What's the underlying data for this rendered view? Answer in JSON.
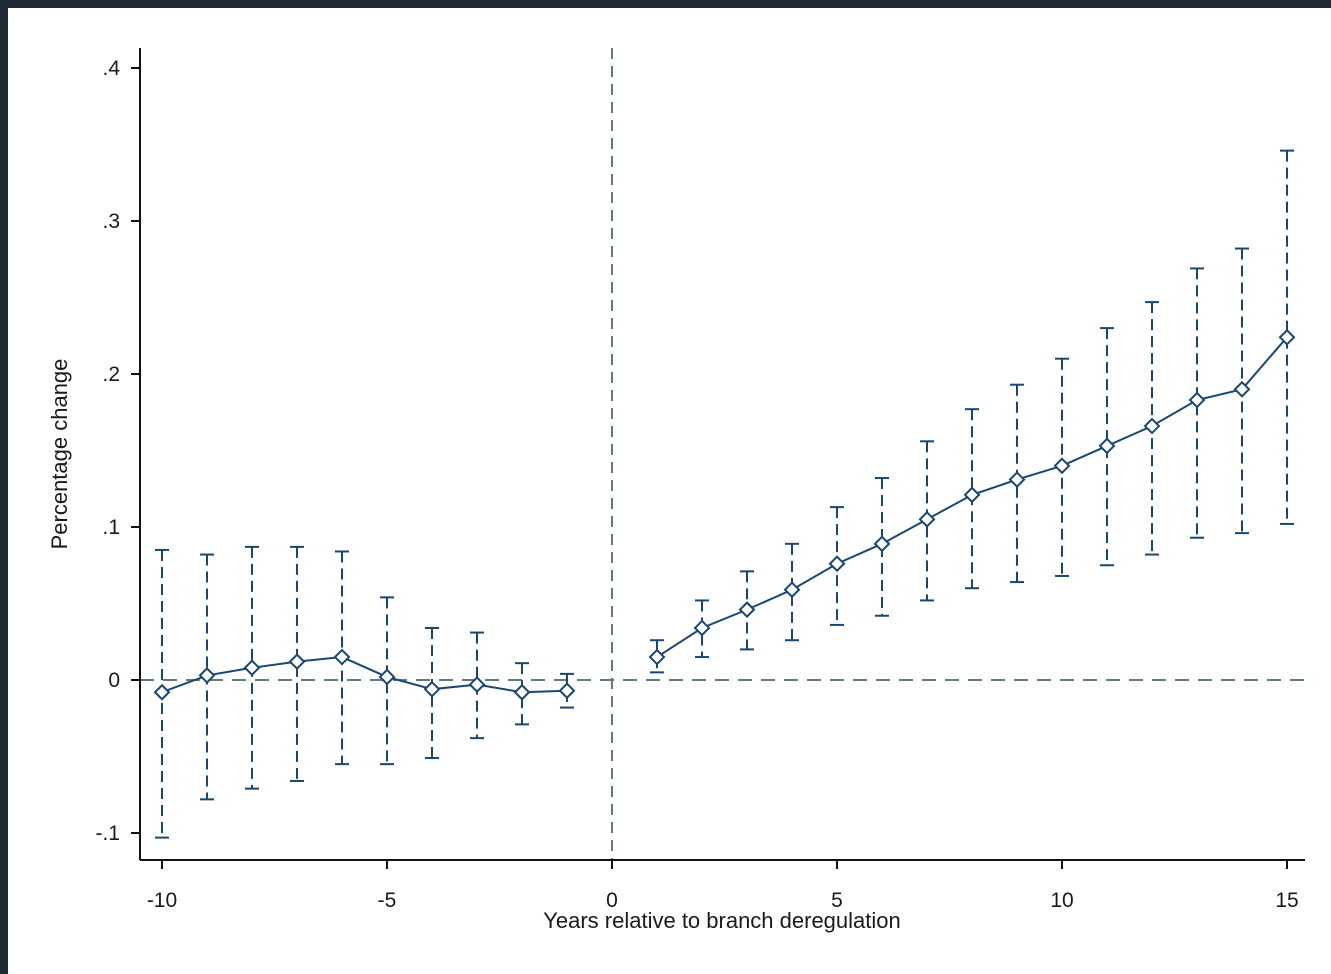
{
  "colors": {
    "series": "#1a476f",
    "reference": "#5f7f73",
    "axis": "#111111",
    "window_frame": "#212b35",
    "background": "#ffffff"
  },
  "chart_data": {
    "type": "line",
    "title": "",
    "xlabel": "Years relative to branch deregulation",
    "ylabel": "Percentage change",
    "xlim": [
      -10.5,
      15.4
    ],
    "ylim": [
      -0.12,
      0.41
    ],
    "xticks": [
      -10,
      -5,
      0,
      5,
      10,
      15
    ],
    "xtick_labels": [
      "-10",
      "-5",
      "0",
      "5",
      "10",
      "15"
    ],
    "yticks": [
      -0.1,
      0,
      0.1,
      0.2,
      0.3,
      0.4
    ],
    "ytick_labels": [
      "-.1",
      "0",
      ".1",
      ".2",
      ".3",
      ".4"
    ],
    "reference_lines": {
      "x": 0,
      "y": 0,
      "style": "dashed"
    },
    "marker": "hollow-diamond",
    "grid": false,
    "legend": "none",
    "series": [
      {
        "x": [
          -10,
          -9,
          -8,
          -7,
          -6,
          -5,
          -4,
          -3,
          -2,
          -1
        ],
        "y": [
          -0.008,
          0.003,
          0.008,
          0.012,
          0.015,
          0.002,
          -0.006,
          -0.003,
          -0.008,
          -0.007
        ],
        "ci_upper": [
          0.085,
          0.082,
          0.087,
          0.087,
          0.084,
          0.054,
          0.034,
          0.031,
          0.011,
          0.004
        ],
        "ci_lower": [
          -0.103,
          -0.078,
          -0.071,
          -0.066,
          -0.055,
          -0.055,
          -0.051,
          -0.038,
          -0.029,
          -0.018
        ]
      },
      {
        "x": [
          1,
          2,
          3,
          4,
          5,
          6,
          7,
          8,
          9,
          10,
          11,
          12,
          13,
          14,
          15
        ],
        "y": [
          0.015,
          0.034,
          0.046,
          0.059,
          0.076,
          0.089,
          0.105,
          0.121,
          0.131,
          0.14,
          0.153,
          0.166,
          0.183,
          0.19,
          0.224
        ],
        "ci_upper": [
          0.026,
          0.052,
          0.071,
          0.089,
          0.113,
          0.132,
          0.156,
          0.177,
          0.193,
          0.21,
          0.23,
          0.247,
          0.269,
          0.282,
          0.346
        ],
        "ci_lower": [
          0.005,
          0.015,
          0.02,
          0.026,
          0.036,
          0.042,
          0.052,
          0.06,
          0.064,
          0.068,
          0.075,
          0.082,
          0.093,
          0.096,
          0.102
        ]
      }
    ]
  }
}
